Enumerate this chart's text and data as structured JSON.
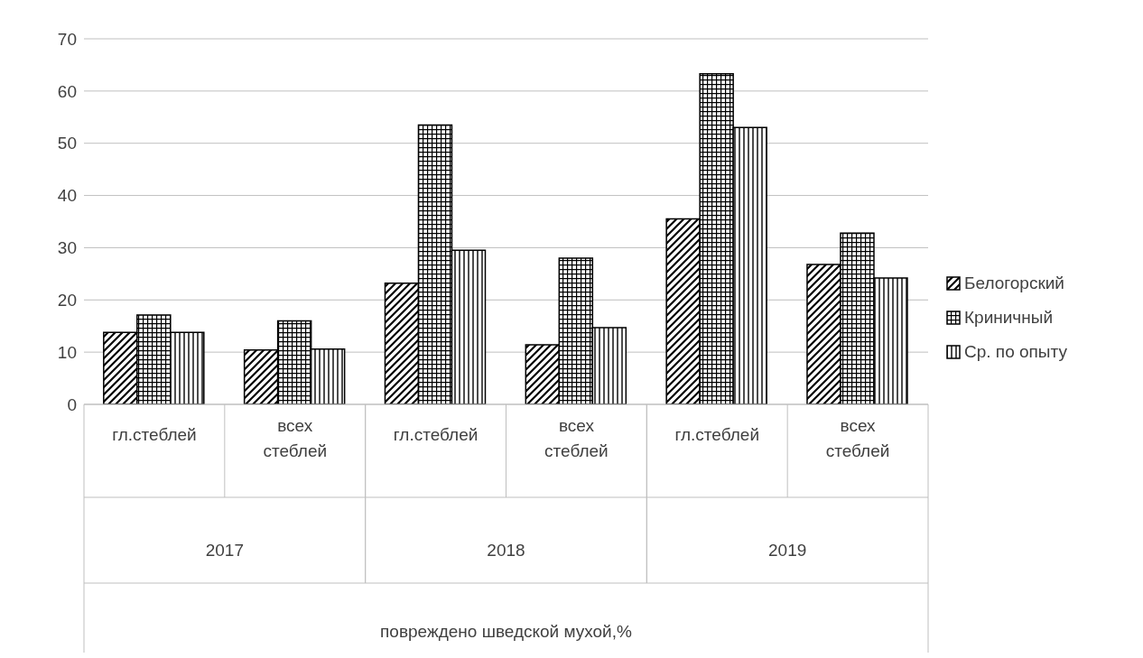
{
  "chart_data": {
    "type": "bar",
    "categories": [
      "гл.стеблей",
      "всех стеблей",
      "гл.стеблей",
      "всех стеблей",
      "гл.стеблей",
      "всех стеблей"
    ],
    "series": [
      {
        "name": "Белогорский",
        "color": "#000000",
        "values": [
          13.8,
          10.4,
          23.2,
          11.4,
          35.5,
          26.8
        ]
      },
      {
        "name": "Криничный",
        "color": "#000000",
        "values": [
          17.1,
          16.0,
          53.5,
          28.0,
          63.3,
          32.8
        ]
      },
      {
        "name": "Ср. по опыту",
        "color": "#000000",
        "values": [
          13.8,
          10.6,
          29.5,
          14.7,
          53.0,
          24.2
        ]
      }
    ],
    "annotations": [
      "2017",
      "2018",
      "2019",
      "повреждено шведской мухой,%"
    ],
    "ylim": [
      0,
      70
    ],
    "yticks": [
      0,
      10,
      20,
      30,
      40,
      50,
      60,
      70
    ],
    "grid": "y",
    "legend": "right"
  }
}
